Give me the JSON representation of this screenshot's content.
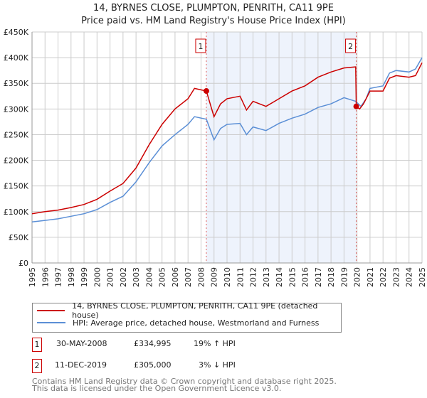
{
  "title": "14, BYRNES CLOSE, PLUMPTON, PENRITH, CA11 9PE",
  "subtitle": "Price paid vs. HM Land Registry's House Price Index (HPI)",
  "chart_data": {
    "type": "line",
    "title": "14, BYRNES CLOSE, PLUMPTON, PENRITH, CA11 9PE",
    "subtitle": "Price paid vs. HM Land Registry's House Price Index (HPI)",
    "xlabel": "",
    "ylabel": "",
    "xlim": [
      1995,
      2025
    ],
    "ylim": [
      0,
      450000
    ],
    "grid": true,
    "y_ticks": [
      0,
      50000,
      100000,
      150000,
      200000,
      250000,
      300000,
      350000,
      400000,
      450000
    ],
    "y_tick_labels": [
      "£0",
      "£50K",
      "£100K",
      "£150K",
      "£200K",
      "£250K",
      "£300K",
      "£350K",
      "£400K",
      "£450K"
    ],
    "x_ticks": [
      "1995",
      "1996",
      "1997",
      "1998",
      "1999",
      "2000",
      "2001",
      "2002",
      "2003",
      "2004",
      "2005",
      "2006",
      "2007",
      "2008",
      "2009",
      "2010",
      "2011",
      "2012",
      "2013",
      "2014",
      "2015",
      "2016",
      "2017",
      "2018",
      "2019",
      "2020",
      "2021",
      "2022",
      "2023",
      "2024",
      "2025"
    ],
    "shaded_range": [
      2008.41,
      2019.94
    ],
    "series": [
      {
        "name": "14, BYRNES CLOSE, PLUMPTON, PENRITH, CA11 9PE (detached house)",
        "color": "#cc0000",
        "x": [
          1995,
          1996,
          1997,
          1998,
          1999,
          2000,
          2001,
          2002,
          2003,
          2004,
          2005,
          2006,
          2007,
          2007.5,
          2008.41,
          2009,
          2009.5,
          2010,
          2011,
          2011.5,
          2012,
          2013,
          2014,
          2015,
          2016,
          2017,
          2018,
          2019,
          2019.9,
          2019.94,
          2020.2,
          2020.5,
          2021,
          2022,
          2022.5,
          2023,
          2024,
          2024.5,
          2025
        ],
        "y": [
          96000,
          100000,
          103000,
          108000,
          114000,
          124000,
          140000,
          155000,
          185000,
          230000,
          270000,
          300000,
          320000,
          340000,
          334995,
          285000,
          310000,
          320000,
          325000,
          298000,
          315000,
          305000,
          320000,
          335000,
          345000,
          362000,
          372000,
          380000,
          382000,
          305000,
          300000,
          310000,
          335000,
          335000,
          360000,
          365000,
          362000,
          365000,
          390000
        ]
      },
      {
        "name": "HPI: Average price, detached house, Westmorland and Furness",
        "color": "#5b8fd6",
        "x": [
          1995,
          1996,
          1997,
          1998,
          1999,
          2000,
          2001,
          2002,
          2003,
          2004,
          2005,
          2006,
          2007,
          2007.5,
          2008.41,
          2009,
          2009.5,
          2010,
          2011,
          2011.5,
          2012,
          2013,
          2014,
          2015,
          2016,
          2017,
          2018,
          2019,
          2019.9,
          2020.3,
          2020.7,
          2021,
          2022,
          2022.5,
          2023,
          2024,
          2024.5,
          2025
        ],
        "y": [
          80000,
          83000,
          86000,
          91000,
          96000,
          104000,
          118000,
          130000,
          158000,
          195000,
          228000,
          250000,
          270000,
          285000,
          280000,
          240000,
          262000,
          270000,
          272000,
          250000,
          265000,
          258000,
          272000,
          282000,
          290000,
          303000,
          310000,
          322000,
          315000,
          305000,
          320000,
          340000,
          345000,
          370000,
          375000,
          372000,
          378000,
          400000
        ]
      }
    ],
    "annotations": [
      {
        "label": "1",
        "x": 2008.41,
        "y": 334995
      },
      {
        "label": "2",
        "x": 2019.94,
        "y": 305000
      }
    ]
  },
  "legend": [
    {
      "label": "14, BYRNES CLOSE, PLUMPTON, PENRITH, CA11 9PE (detached house)",
      "color": "#cc0000"
    },
    {
      "label": "HPI: Average price, detached house, Westmorland and Furness",
      "color": "#5b8fd6"
    }
  ],
  "sales": [
    {
      "num": "1",
      "date": "30-MAY-2008",
      "price": "£334,995",
      "hpi": "19% ↑ HPI"
    },
    {
      "num": "2",
      "date": "11-DEC-2019",
      "price": "£305,000",
      "hpi": "3% ↓ HPI"
    }
  ],
  "footer": [
    "Contains HM Land Registry data © Crown copyright and database right 2025.",
    "This data is licensed under the Open Government Licence v3.0."
  ]
}
